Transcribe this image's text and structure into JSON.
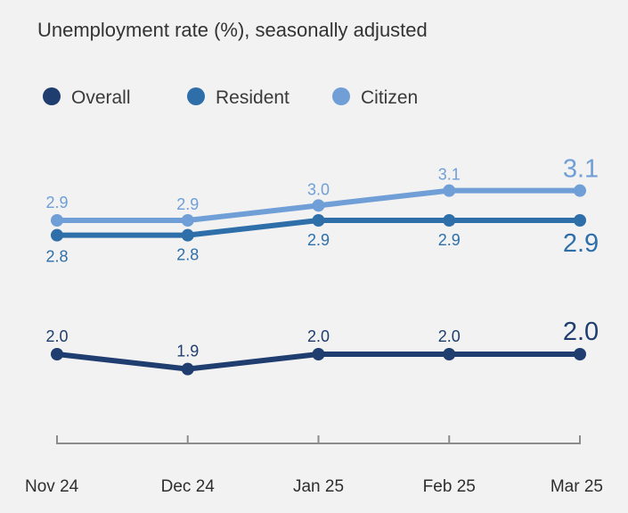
{
  "chart_data": {
    "type": "line",
    "title": "Unemployment rate (%), seasonally adjusted",
    "categories": [
      "Nov 24",
      "Dec 24",
      "Jan 25",
      "Feb 25",
      "Mar 25"
    ],
    "series": [
      {
        "name": "Overall",
        "color": "#1f3d6e",
        "values": [
          2.0,
          1.9,
          2.0,
          2.0,
          2.0
        ],
        "labels": [
          "2.0",
          "1.9",
          "2.0",
          "2.0",
          "2.0"
        ]
      },
      {
        "name": "Resident",
        "color": "#2e6faa",
        "values": [
          2.8,
          2.8,
          2.9,
          2.9,
          2.9
        ],
        "labels": [
          "2.8",
          "2.8",
          "2.9",
          "2.9",
          "2.9"
        ]
      },
      {
        "name": "Citizen",
        "color": "#6f9fd6",
        "values": [
          2.9,
          2.9,
          3.0,
          3.1,
          3.1
        ],
        "labels": [
          "2.9",
          "2.9",
          "3.0",
          "3.1",
          "3.1"
        ]
      }
    ],
    "xlabel": "",
    "ylabel": "",
    "grid": false,
    "legend": "top-left"
  }
}
